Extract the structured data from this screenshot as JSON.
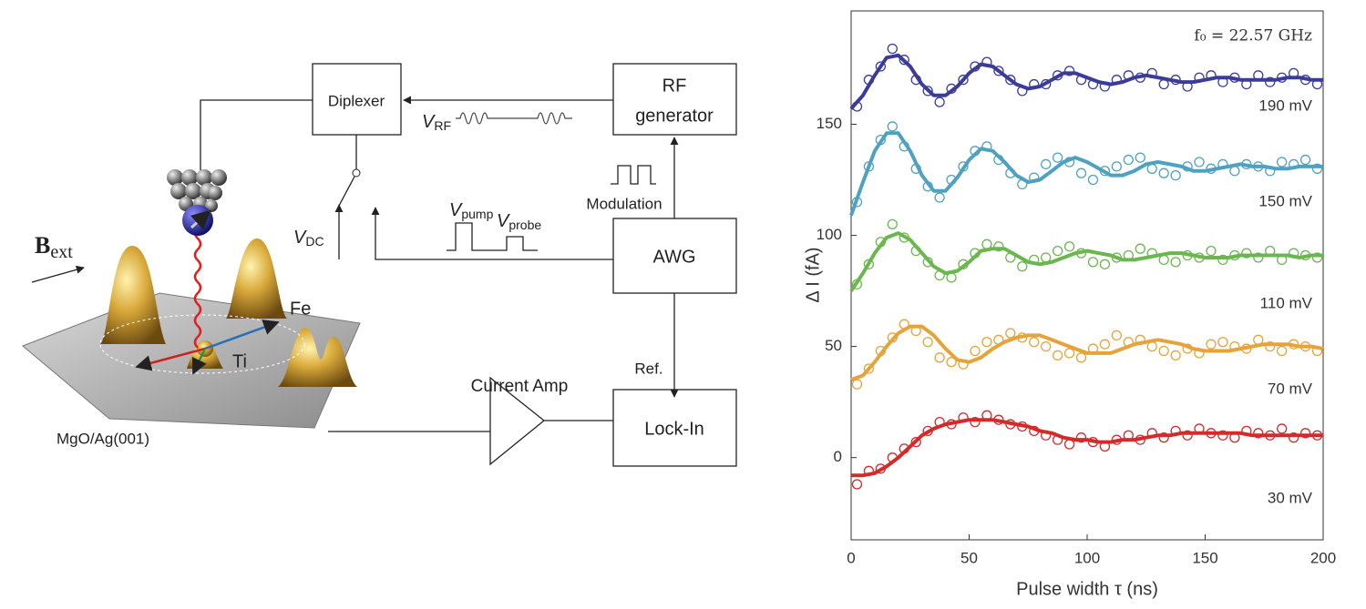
{
  "diagram": {
    "diplexer": "Diplexer",
    "rf_generator": [
      "RF",
      "generator"
    ],
    "awg": "AWG",
    "lock_in": "Lock-In",
    "current_amp": "Current Amp",
    "ref": "Ref.",
    "modulation": "Modulation",
    "substrate": "MgO/Ag(001)",
    "field": {
      "base": "B",
      "sub": "ext"
    },
    "fe": "Fe",
    "ti": "Ti",
    "v_rf": {
      "base": "V",
      "sub": "RF"
    },
    "v_dc": {
      "base": "V",
      "sub": "DC"
    },
    "v_pump": {
      "base": "V",
      "sub": "pump"
    },
    "v_probe": {
      "base": "V",
      "sub": "probe"
    }
  },
  "chart_data": {
    "type": "scatter",
    "annotation": "f₀ = 22.57 GHz",
    "xlabel": "Pulse width τ (ns)",
    "ylabel": "Δ I (fA)",
    "xlim": [
      0,
      200
    ],
    "ylim": [
      -37,
      201
    ],
    "xticks": [
      0,
      50,
      100,
      150,
      200
    ],
    "yticks": [
      0,
      50,
      100,
      150
    ],
    "x": [
      2.5,
      7.5,
      12.5,
      17.5,
      22.5,
      27.5,
      32.5,
      37.5,
      42.5,
      47.5,
      52.5,
      57.5,
      62.5,
      67.5,
      72.5,
      77.5,
      82.5,
      87.5,
      92.5,
      97.5,
      102.5,
      107.5,
      112.5,
      117.5,
      122.5,
      127.5,
      132.5,
      137.5,
      142.5,
      147.5,
      152.5,
      157.5,
      162.5,
      167.5,
      172.5,
      177.5,
      182.5,
      187.5,
      192.5,
      197.5
    ],
    "fit_x": [
      0,
      5,
      10,
      15,
      20,
      25,
      30,
      35,
      40,
      45,
      50,
      55,
      60,
      65,
      70,
      75,
      80,
      85,
      90,
      95,
      100,
      105,
      110,
      115,
      120,
      125,
      130,
      135,
      140,
      145,
      150,
      155,
      160,
      165,
      170,
      175,
      180,
      185,
      190,
      195,
      200
    ],
    "series": [
      {
        "name": "190 mV",
        "color": "#3b3c9a",
        "values": [
          158,
          170,
          176,
          184,
          179,
          170,
          165,
          160,
          166,
          170,
          176,
          178,
          174,
          170,
          165,
          168,
          168,
          172,
          174,
          170,
          168,
          167,
          170,
          172,
          171,
          173,
          168,
          170,
          167,
          171,
          172,
          169,
          171,
          168,
          172,
          169,
          171,
          173,
          170,
          168
        ],
        "fit": [
          157,
          163,
          172,
          180,
          181,
          176,
          168,
          163,
          163,
          167,
          173,
          177,
          176,
          172,
          168,
          166,
          167,
          170,
          173,
          173,
          171,
          169,
          168,
          169,
          171,
          172,
          171,
          170,
          169,
          169,
          170,
          171,
          171,
          170,
          170,
          170,
          170,
          171,
          171,
          170,
          170
        ]
      },
      {
        "name": "150 mV",
        "color": "#4ea2bf",
        "values": [
          115,
          131,
          143,
          149,
          140,
          130,
          122,
          117,
          125,
          131,
          138,
          140,
          134,
          128,
          123,
          126,
          132,
          135,
          133,
          128,
          125,
          129,
          131,
          134,
          135,
          130,
          128,
          127,
          131,
          133,
          130,
          132,
          129,
          132,
          131,
          129,
          133,
          132,
          134,
          130
        ],
        "fit": [
          109,
          124,
          138,
          146,
          146,
          138,
          127,
          120,
          120,
          126,
          134,
          139,
          138,
          133,
          127,
          124,
          125,
          129,
          133,
          135,
          133,
          130,
          127,
          127,
          129,
          132,
          133,
          132,
          131,
          129,
          129,
          130,
          131,
          132,
          131,
          131,
          130,
          130,
          131,
          131,
          131
        ]
      },
      {
        "name": "110 mV",
        "color": "#6bb74f",
        "values": [
          78,
          87,
          97,
          105,
          99,
          93,
          88,
          82,
          81,
          87,
          92,
          96,
          95,
          90,
          86,
          89,
          90,
          93,
          95,
          92,
          88,
          87,
          90,
          91,
          94,
          92,
          89,
          88,
          91,
          90,
          93,
          89,
          91,
          92,
          90,
          93,
          89,
          92,
          91,
          90
        ],
        "fit": [
          75,
          83,
          92,
          99,
          101,
          98,
          92,
          86,
          83,
          84,
          88,
          93,
          94,
          94,
          91,
          88,
          87,
          88,
          90,
          92,
          93,
          92,
          91,
          89,
          89,
          90,
          91,
          92,
          92,
          91,
          90,
          90,
          90,
          91,
          91,
          91,
          91,
          91,
          90,
          91,
          91
        ]
      },
      {
        "name": "70 mV",
        "color": "#e6a33a",
        "values": [
          33,
          40,
          48,
          54,
          60,
          57,
          52,
          45,
          43,
          42,
          48,
          52,
          53,
          56,
          54,
          52,
          50,
          46,
          47,
          45,
          49,
          51,
          55,
          52,
          53,
          50,
          48,
          46,
          49,
          47,
          51,
          52,
          50,
          49,
          53,
          50,
          48,
          51,
          50,
          48
        ],
        "fit": [
          35,
          37,
          43,
          50,
          56,
          59,
          59,
          55,
          49,
          44,
          43,
          45,
          49,
          52,
          54,
          55,
          55,
          53,
          51,
          49,
          47,
          47,
          47,
          49,
          51,
          52,
          53,
          52,
          51,
          49,
          48,
          48,
          48,
          49,
          50,
          51,
          51,
          51,
          50,
          50,
          49
        ]
      },
      {
        "name": "30 mV",
        "color": "#d42a2a",
        "values": [
          -12,
          -6,
          -5,
          0,
          4,
          7,
          12,
          16,
          15,
          18,
          16,
          19,
          17,
          15,
          14,
          12,
          10,
          8,
          6,
          9,
          7,
          5,
          8,
          10,
          8,
          11,
          9,
          12,
          10,
          13,
          11,
          10,
          9,
          12,
          11,
          10,
          13,
          9,
          11,
          10
        ],
        "fit": [
          -8,
          -8,
          -7,
          -4,
          0,
          5,
          10,
          13,
          15,
          16,
          17,
          17,
          17,
          16,
          15,
          14,
          12,
          11,
          9,
          8,
          8,
          7,
          7,
          8,
          8,
          9,
          10,
          10,
          11,
          11,
          11,
          11,
          11,
          11,
          10,
          10,
          10,
          10,
          10,
          10,
          10
        ]
      }
    ]
  }
}
